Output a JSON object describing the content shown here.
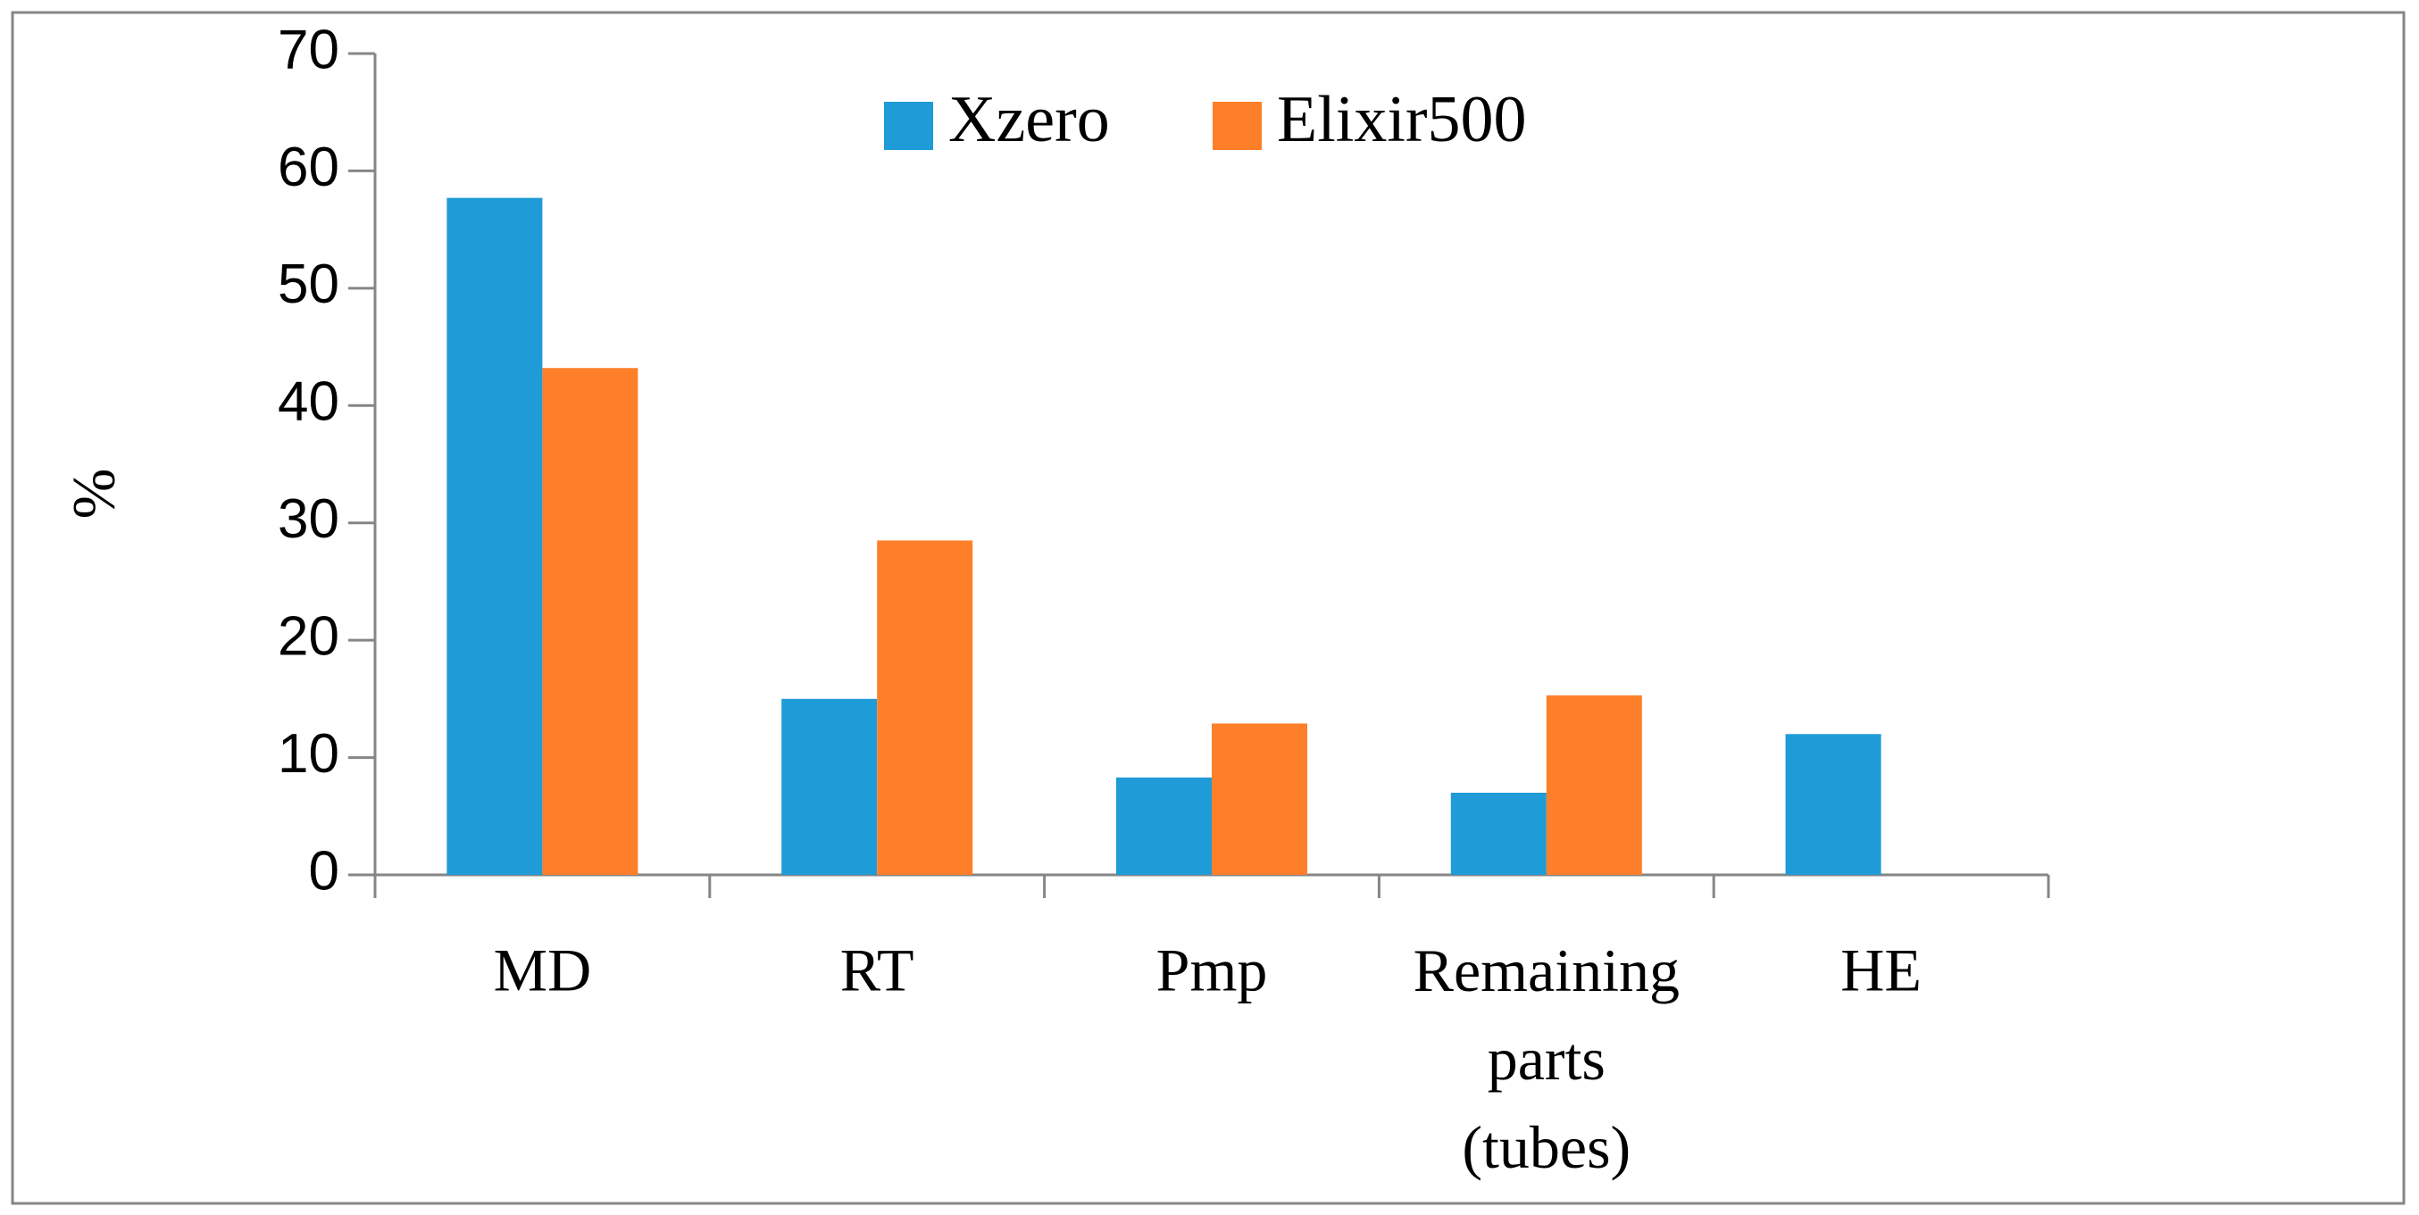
{
  "chart_data": {
    "type": "bar",
    "y_label": "%",
    "categories": [
      "MD",
      "RT",
      "Pmp",
      "Remaining parts (tubes)",
      "HE"
    ],
    "series": [
      {
        "name": "Xzero",
        "color": "#1f9bd7",
        "values": [
          57.7,
          15,
          8.3,
          7,
          12
        ]
      },
      {
        "name": "Elixir500",
        "color": "#fd7f2a",
        "values": [
          43.2,
          28.5,
          12.9,
          15.3,
          null
        ]
      }
    ],
    "ylim": [
      0,
      70
    ],
    "yticks": [
      0,
      10,
      20,
      30,
      40,
      50,
      60,
      70
    ],
    "legend": "top",
    "grid": false
  }
}
